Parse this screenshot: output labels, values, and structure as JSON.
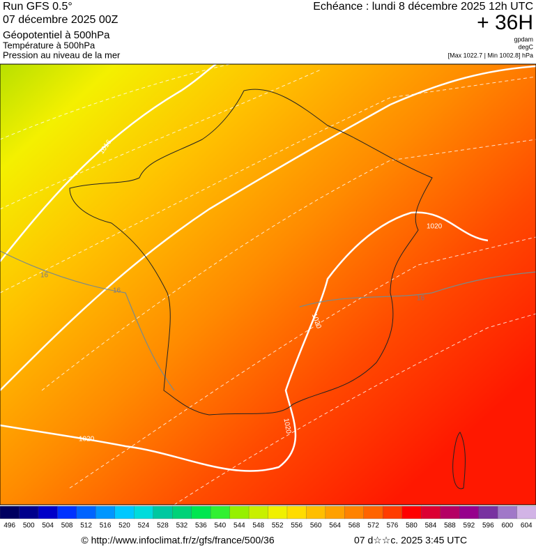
{
  "header": {
    "run": "Run GFS 0.5°",
    "date": "07 décembre 2025 00Z",
    "param1": "Géopotentiel à 500hPa",
    "param2": "Température à 500hPa",
    "param3": "Pression au niveau de la mer",
    "forecast": "Echéance : lundi 8 décembre 2025 12h UTC",
    "lead": "+ 36H",
    "unit1": "gpdam",
    "unit2": "degC",
    "range": "[Max 1022.7 | Min 1002.8] hPa"
  },
  "map": {
    "contour_labels": [
      "1016",
      "1020",
      "1020",
      "1020",
      "1020",
      "16",
      "16",
      "16"
    ]
  },
  "legend": {
    "values": [
      496,
      500,
      504,
      508,
      512,
      516,
      520,
      524,
      528,
      532,
      536,
      540,
      544,
      548,
      552,
      556,
      560,
      564,
      568,
      572,
      576,
      580,
      584,
      588,
      592,
      596,
      600,
      604
    ],
    "colors": [
      "#000060",
      "#00008c",
      "#0000c8",
      "#0032ff",
      "#0064ff",
      "#0096ff",
      "#00c8ff",
      "#00dcdc",
      "#00c8a0",
      "#00d278",
      "#00e650",
      "#32f032",
      "#96f000",
      "#c8f000",
      "#f0f000",
      "#ffdc00",
      "#ffbe00",
      "#ffa000",
      "#ff8200",
      "#ff6400",
      "#ff3c00",
      "#ff0000",
      "#dc0032",
      "#b40064",
      "#96008c",
      "#7832a0",
      "#a078c8",
      "#d2b4e6"
    ]
  },
  "footer": {
    "url": "© http://www.infoclimat.fr/z/gfs/france/500/36",
    "timestamp": "07 d☆☆c. 2025  3:45 UTC"
  }
}
